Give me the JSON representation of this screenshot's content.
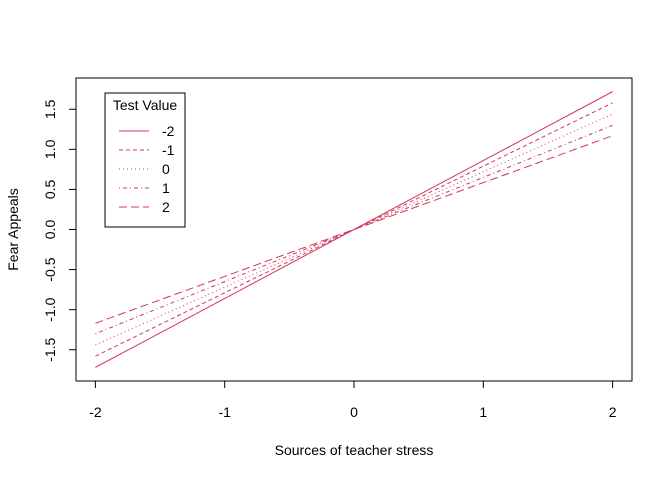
{
  "chart_data": {
    "type": "line",
    "title": "",
    "xlabel": "Sources of teacher stress",
    "ylabel": "Fear Appeals",
    "xlim": [
      -2.15,
      2.15
    ],
    "ylim": [
      -1.89,
      1.89
    ],
    "x_ticks": [
      -2,
      -1,
      0,
      1,
      2
    ],
    "x_tick_labels": [
      "-2",
      "-1",
      "0",
      "1",
      "2"
    ],
    "y_ticks": [
      -1.5,
      -1.0,
      -0.5,
      0.0,
      0.5,
      1.0,
      1.5
    ],
    "y_tick_labels": [
      "-1.5",
      "-1.0",
      "-0.5",
      "0.0",
      "0.5",
      "1.0",
      "1.5"
    ],
    "grid": false,
    "line_color": "#d1365a",
    "legend": {
      "title": "Test Value",
      "placement": "top-left"
    },
    "series": [
      {
        "name": "-2",
        "dash": "solid",
        "x": [
          -2,
          2
        ],
        "y": [
          -1.72,
          1.72
        ]
      },
      {
        "name": "-1",
        "dash": "dashed",
        "x": [
          -2,
          2
        ],
        "y": [
          -1.58,
          1.58
        ]
      },
      {
        "name": "0",
        "dash": "dotted",
        "x": [
          -2,
          2
        ],
        "y": [
          -1.44,
          1.44
        ]
      },
      {
        "name": "1",
        "dash": "dotdash",
        "x": [
          -2,
          2
        ],
        "y": [
          -1.3,
          1.3
        ]
      },
      {
        "name": "2",
        "dash": "longdash",
        "x": [
          -2,
          2
        ],
        "y": [
          -1.17,
          1.17
        ]
      }
    ]
  }
}
